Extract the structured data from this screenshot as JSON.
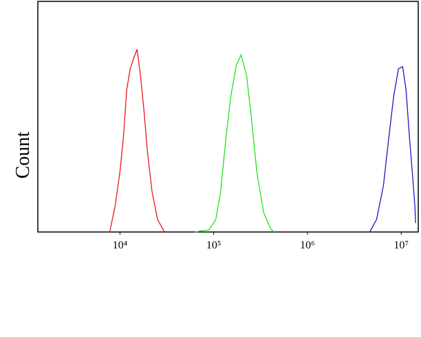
{
  "chart_data": {
    "type": "line",
    "y_label": "Count",
    "x_log": true,
    "xlim": [
      1330,
      15200000
    ],
    "ylim": [
      0,
      100
    ],
    "xticks": [
      {
        "value": 10000,
        "label": "10⁴"
      },
      {
        "value": 100000,
        "label": "10⁵"
      },
      {
        "value": 1000000,
        "label": "10⁶"
      },
      {
        "value": 10000000,
        "label": "10⁷"
      }
    ],
    "series": [
      {
        "color": "#e8141b",
        "x": [
          7780,
          8890,
          10000,
          10880,
          11830,
          12870,
          14000,
          15220,
          16560,
          18010,
          19590,
          22030,
          25210,
          29820
        ],
        "values": [
          0,
          11.3,
          26.2,
          41.1,
          61.9,
          70.8,
          75.3,
          79.2,
          67.9,
          53.0,
          35.1,
          17.3,
          5.4,
          0
        ]
      },
      {
        "color": "#22e01e",
        "x": [
          63500,
          75200,
          88900,
          105200,
          118300,
          135300,
          152200,
          174100,
          195900,
          224000,
          251900,
          288200,
          341100,
          403300,
          438600
        ],
        "values": [
          0,
          0.6,
          0.9,
          5.4,
          17.3,
          41.1,
          58.9,
          72.3,
          76.8,
          67.9,
          50,
          26.2,
          8.3,
          1.5,
          0
        ]
      },
      {
        "color": "#1a16c8",
        "x": [
          4610000,
          5460000,
          6460000,
          7390000,
          8320000,
          9360000,
          10350000,
          11250000,
          12250000,
          13310000,
          14000000,
          14230000
        ],
        "values": [
          0,
          5.4,
          20.2,
          41.1,
          58.9,
          70.8,
          71.7,
          61.9,
          41.1,
          23.2,
          11.3,
          3.9
        ]
      }
    ]
  }
}
